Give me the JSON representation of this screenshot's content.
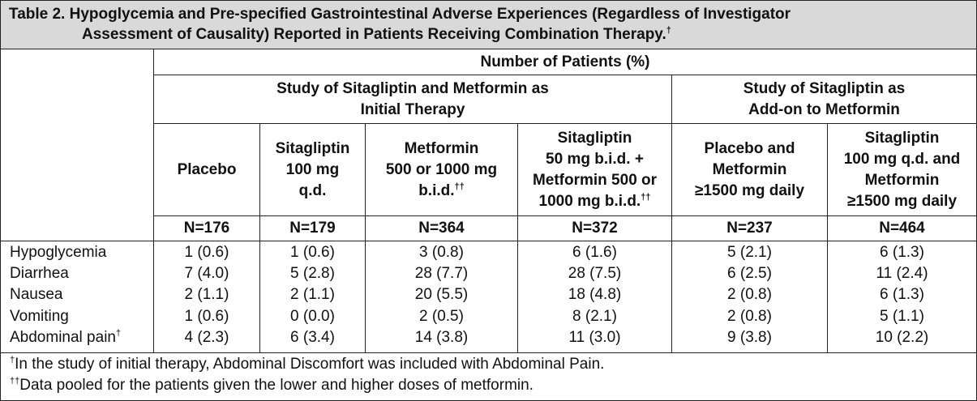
{
  "title": {
    "line1": "Table 2. Hypoglycemia and Pre-specified Gastrointestinal Adverse Experiences (Regardless of Investigator",
    "line2": "Assessment of Causality) Reported in Patients Receiving Combination Therapy.",
    "line2_sup": "†"
  },
  "header": {
    "number_of_patients": "Number of Patients (%)",
    "group1_line1": "Study of Sitagliptin and Metformin as",
    "group1_line2": "Initial Therapy",
    "group2_line1": "Study of Sitagliptin as",
    "group2_line2": "Add-on to Metformin",
    "columns": [
      {
        "lines": [
          "Placebo"
        ],
        "sup": "",
        "n": "N=176"
      },
      {
        "lines": [
          "Sitagliptin",
          "100 mg",
          "q.d."
        ],
        "sup": "",
        "n": "N=179"
      },
      {
        "lines": [
          "Metformin",
          "500 or 1000 mg",
          "b.i.d."
        ],
        "sup": "††",
        "n": "N=364"
      },
      {
        "lines": [
          "Sitagliptin",
          "50 mg b.i.d. +",
          "Metformin 500 or",
          "1000 mg b.i.d."
        ],
        "sup": "††",
        "n": "N=372"
      },
      {
        "lines": [
          "Placebo and",
          "Metformin",
          "≥1500 mg daily"
        ],
        "sup": "",
        "n": "N=237"
      },
      {
        "lines": [
          "Sitagliptin",
          "100 mg q.d. and",
          "Metformin",
          "≥1500 mg daily"
        ],
        "sup": "",
        "n": "N=464"
      }
    ]
  },
  "rows": [
    {
      "label": "Hypoglycemia",
      "sup": "",
      "values": [
        "1 (0.6)",
        "1 (0.6)",
        "3 (0.8)",
        "6 (1.6)",
        "5 (2.1)",
        "6 (1.3)"
      ]
    },
    {
      "label": "Diarrhea",
      "sup": "",
      "values": [
        "7 (4.0)",
        "5 (2.8)",
        "28 (7.7)",
        "28 (7.5)",
        "6 (2.5)",
        "11 (2.4)"
      ]
    },
    {
      "label": "Nausea",
      "sup": "",
      "values": [
        "2 (1.1)",
        "2 (1.1)",
        "20 (5.5)",
        "18 (4.8)",
        "2 (0.8)",
        "6 (1.3)"
      ]
    },
    {
      "label": "Vomiting",
      "sup": "",
      "values": [
        "1 (0.6)",
        "0 (0.0)",
        "2 (0.5)",
        "8 (2.1)",
        "2 (0.8)",
        "5 (1.1)"
      ]
    },
    {
      "label": "Abdominal pain",
      "sup": "†",
      "values": [
        "4 (2.3)",
        "6 (3.4)",
        "14 (3.8)",
        "11 (3.0)",
        "9 (3.8)",
        "10 (2.2)"
      ]
    }
  ],
  "footnotes": [
    {
      "sup": "†",
      "text": "In the study of initial therapy, Abdominal Discomfort was included with Abdominal Pain."
    },
    {
      "sup": "††",
      "text": "Data pooled for the patients given the lower and higher doses of metformin."
    }
  ]
}
